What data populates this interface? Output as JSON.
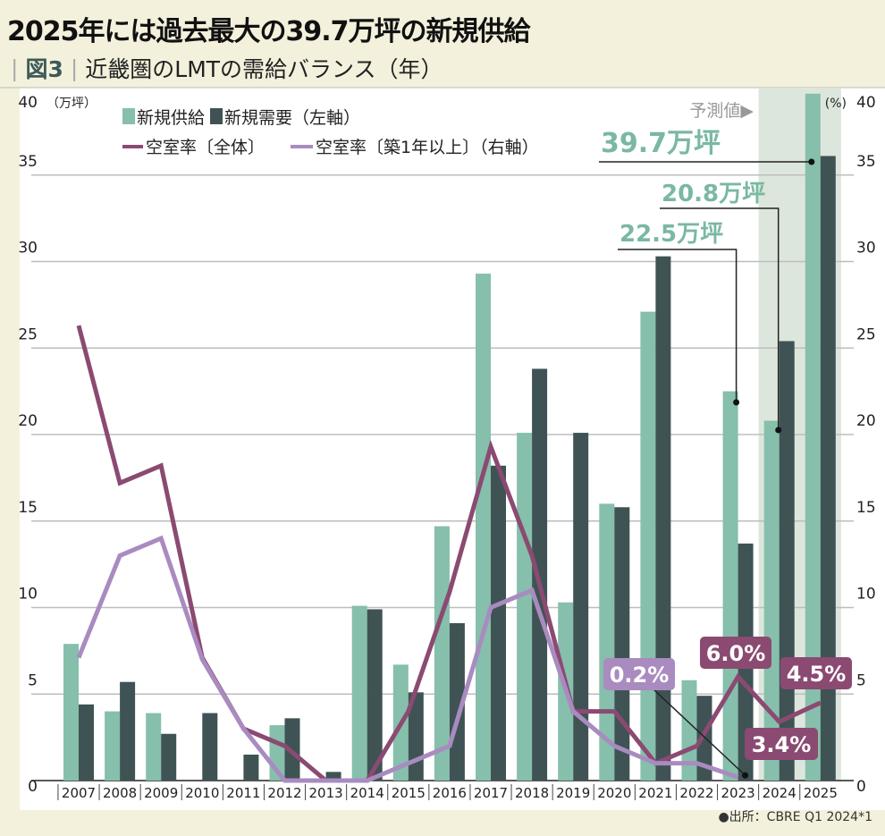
{
  "header": {
    "title": "2025年には過去最大の39.7万坪の新規供給",
    "figure_label": "図3",
    "subtitle": "近畿圏のLMTの需給バランス（年）"
  },
  "source": "●出所：CBRE Q1 2024*1",
  "chart_data": {
    "type": "bar+line",
    "categories": [
      "2007",
      "2008",
      "2009",
      "2010",
      "2011",
      "2012",
      "2013",
      "2014",
      "2015",
      "2016",
      "2017",
      "2018",
      "2019",
      "2020",
      "2021",
      "2022",
      "2023",
      "2024",
      "2025"
    ],
    "left_axis": {
      "label": "（万坪）",
      "range": [
        0,
        40
      ],
      "ticks": [
        0,
        5,
        10,
        15,
        20,
        25,
        30,
        35,
        40
      ]
    },
    "right_axis": {
      "label": "(%)",
      "range": [
        0,
        40
      ],
      "ticks": [
        0,
        5,
        10,
        15,
        20,
        25,
        30,
        35,
        40
      ]
    },
    "grid": true,
    "forecast_label": "予測値▶",
    "forecast_years": [
      "2024",
      "2025"
    ],
    "legend": {
      "placement": "top-left",
      "items": [
        "新規供給",
        "新規需要（左軸）",
        "空室率〔全体〕",
        "空室率〔築1年以上〕（右軸）"
      ]
    },
    "series": [
      {
        "name": "新規供給",
        "type": "bar",
        "axis": "left",
        "color": "#86bfab",
        "values": [
          7.9,
          4.0,
          3.9,
          0,
          0,
          3.2,
          0,
          10.1,
          6.7,
          14.7,
          29.3,
          20.1,
          10.3,
          16.0,
          27.1,
          5.8,
          22.5,
          20.8,
          39.7
        ]
      },
      {
        "name": "新規需要",
        "type": "bar",
        "axis": "left",
        "color": "#3f5354",
        "values": [
          4.4,
          5.7,
          2.7,
          3.9,
          1.5,
          3.6,
          0.5,
          9.9,
          5.1,
          9.1,
          18.2,
          23.8,
          20.1,
          15.8,
          30.3,
          4.9,
          13.7,
          25.4,
          36.1
        ]
      },
      {
        "name": "空室率〔全体〕",
        "type": "line",
        "axis": "right",
        "color": "#8b4a72",
        "values": [
          26.3,
          17.2,
          18.2,
          7.1,
          3.0,
          2.0,
          0,
          0,
          4.0,
          10.9,
          19.3,
          13.0,
          4.0,
          4.0,
          1.0,
          2.0,
          6.0,
          3.4,
          4.5
        ]
      },
      {
        "name": "空室率〔築1年以上〕",
        "type": "line",
        "axis": "right",
        "color": "#a98bc0",
        "values": [
          7.1,
          13.0,
          14.0,
          7.0,
          3.0,
          0,
          0,
          0,
          1.0,
          2.0,
          10.0,
          11.0,
          4.0,
          2.0,
          1.0,
          1.0,
          0.2,
          null,
          null
        ]
      }
    ],
    "annotations": [
      {
        "text": "39.7万坪",
        "year": "2025",
        "series": "新規供給"
      },
      {
        "text": "20.8万坪",
        "year": "2024",
        "series": "新規供給"
      },
      {
        "text": "22.5万坪",
        "year": "2023",
        "series": "新規供給"
      },
      {
        "text": "0.2%",
        "year": "2023",
        "series": "空室率〔築1年以上〕"
      },
      {
        "text": "6.0%",
        "year": "2023",
        "series": "空室率〔全体〕"
      },
      {
        "text": "3.4%",
        "year": "2024",
        "series": "空室率〔全体〕"
      },
      {
        "text": "4.5%",
        "year": "2025",
        "series": "空室率〔全体〕"
      }
    ]
  }
}
